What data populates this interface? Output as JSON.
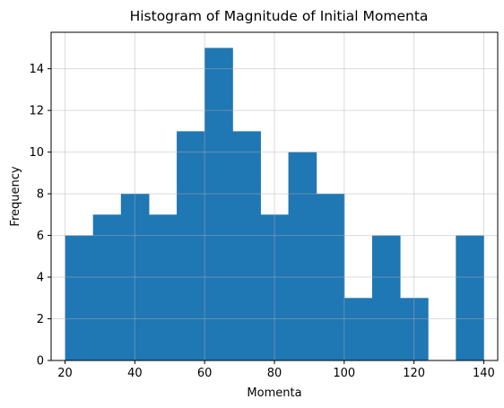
{
  "chart_data": {
    "type": "bar",
    "title": "Histogram of Magnitude of Initial Momenta",
    "xlabel": "Momenta",
    "ylabel": "Frequency",
    "xlim": [
      16.0,
      144.0
    ],
    "ylim": [
      0,
      15.75
    ],
    "x_ticks": [
      20,
      40,
      60,
      80,
      100,
      120,
      140
    ],
    "y_ticks": [
      0,
      2,
      4,
      6,
      8,
      10,
      12,
      14
    ],
    "grid": true,
    "bar_color": "#1f77b4",
    "bins": [
      {
        "x0": 20.0,
        "x1": 28.0,
        "count": 6
      },
      {
        "x0": 28.0,
        "x1": 36.0,
        "count": 7
      },
      {
        "x0": 36.0,
        "x1": 44.0,
        "count": 8
      },
      {
        "x0": 44.0,
        "x1": 52.0,
        "count": 7
      },
      {
        "x0": 52.0,
        "x1": 60.0,
        "count": 11
      },
      {
        "x0": 60.0,
        "x1": 68.0,
        "count": 15
      },
      {
        "x0": 68.0,
        "x1": 76.0,
        "count": 11
      },
      {
        "x0": 76.0,
        "x1": 84.0,
        "count": 7
      },
      {
        "x0": 84.0,
        "x1": 92.0,
        "count": 10
      },
      {
        "x0": 92.0,
        "x1": 100.0,
        "count": 8
      },
      {
        "x0": 100.0,
        "x1": 108.0,
        "count": 3
      },
      {
        "x0": 108.0,
        "x1": 116.0,
        "count": 6
      },
      {
        "x0": 116.0,
        "x1": 124.0,
        "count": 3
      },
      {
        "x0": 124.0,
        "x1": 132.0,
        "count": 0
      },
      {
        "x0": 132.0,
        "x1": 140.0,
        "count": 6
      }
    ]
  }
}
